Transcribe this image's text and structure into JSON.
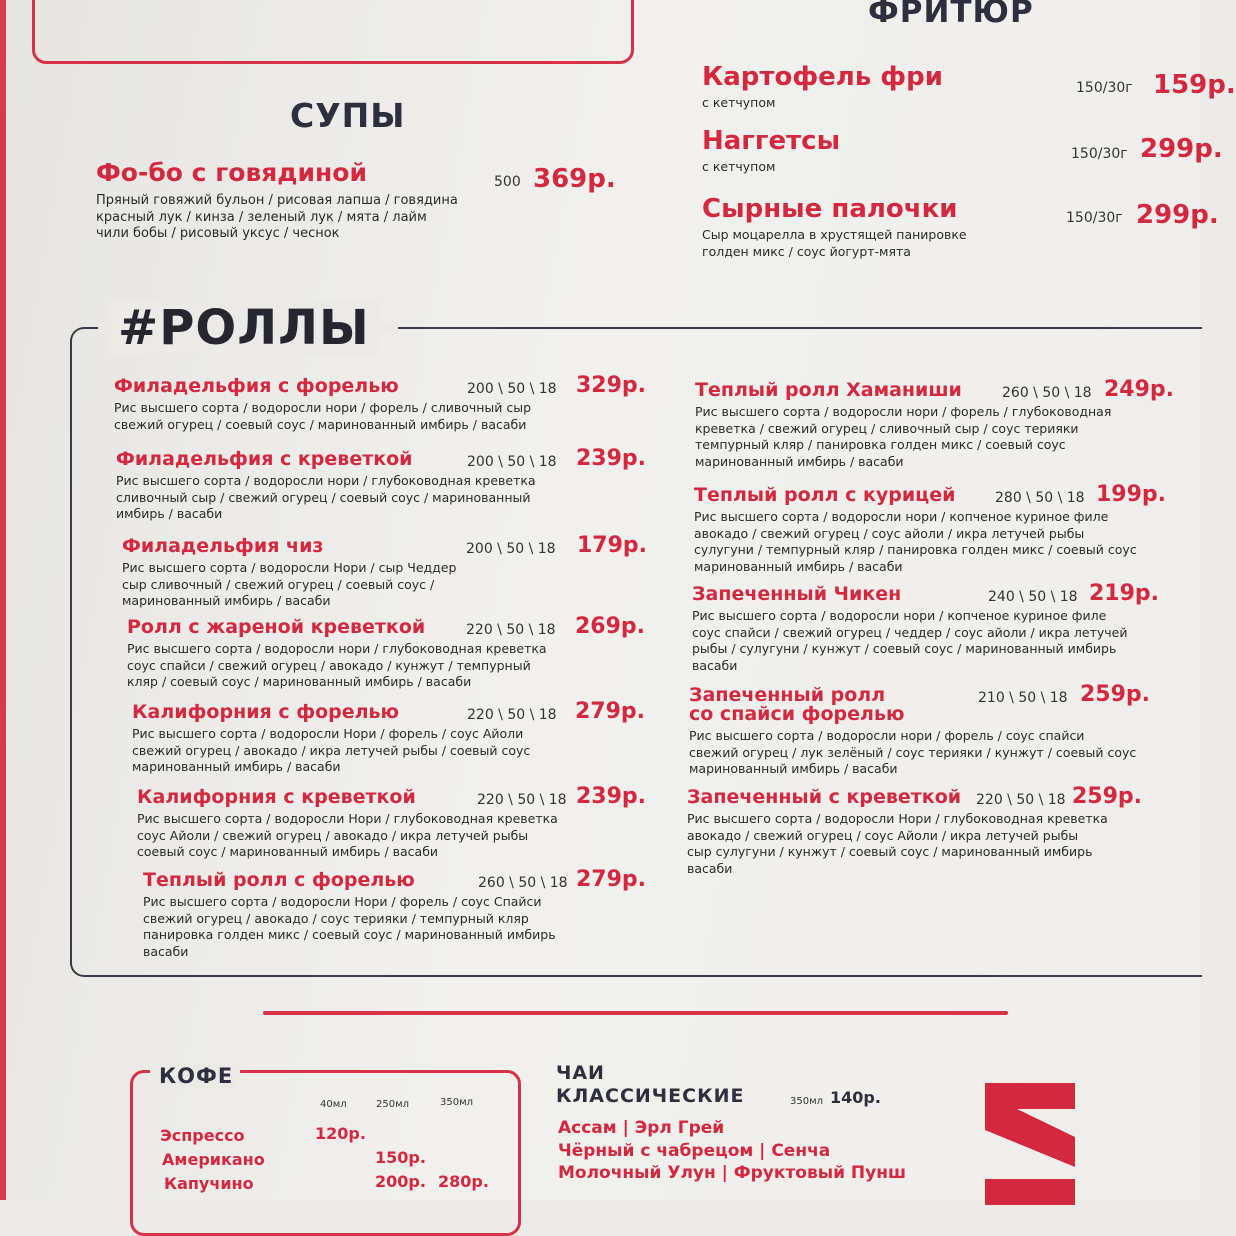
{
  "top_box_text": "",
  "fryer": {
    "title": "ФРИТЮР",
    "items": [
      {
        "name": "Картофель фри",
        "desc": [
          "с кетчупом"
        ],
        "portion": "150/30г",
        "price": "159р."
      },
      {
        "name": "Наггетсы",
        "desc": [
          "с кетчупом"
        ],
        "portion": "150/30г",
        "price": "299р."
      },
      {
        "name": "Сырные палочки",
        "desc": [
          "Сыр моцарелла в хрустящей панировке",
          "голден микс / соус йогурт-мята"
        ],
        "portion": "150/30г",
        "price": "299р."
      }
    ]
  },
  "soups": {
    "title": "СУПЫ",
    "items": [
      {
        "name": "Фо-бо с говядиной",
        "desc": [
          "Пряный говяжий бульон / рисовая лапша / говядина",
          "красный лук / кинза / зеленый лук / мята / лайм",
          "чили бобы / рисовый уксус / чеснок"
        ],
        "portion": "500",
        "price": "369р."
      }
    ]
  },
  "rolls": {
    "title": "#РОЛЛЫ",
    "left": [
      {
        "name": "Филадельфия с форелью",
        "portion": "200 \\ 50 \\ 18",
        "price": "329р.",
        "desc": [
          "Рис высшего сорта / водоросли нори / форель / сливочный сыр",
          "свежий огурец / соевый соус / маринованный имбирь / васаби"
        ]
      },
      {
        "name": "Филадельфия с креветкой",
        "portion": "200 \\ 50 \\ 18",
        "price": "239р.",
        "desc": [
          "Рис высшего сорта / водоросли нори / глубоководная креветка",
          "сливочный сыр / свежий огурец / соевый соус / маринованный",
          "имбирь / васаби"
        ]
      },
      {
        "name": "Филадельфия чиз",
        "portion": "200 \\ 50 \\ 18",
        "price": "179р.",
        "desc": [
          "Рис высшего сорта / водоросли Нори / сыр Чеддер",
          "сыр сливочный / свежий огурец / соевый соус /",
          "маринованный имбирь / васаби"
        ]
      },
      {
        "name": "Ролл с жареной креветкой",
        "portion": "220 \\ 50 \\ 18",
        "price": "269р.",
        "desc": [
          "Рис высшего сорта / водоросли нори / глубоководная креветка",
          "соус спайси / свежий огурец / авокадо / кунжут / темпурный",
          "кляр / соевый соус / маринованный имбирь / васаби"
        ]
      },
      {
        "name": "Калифорния с форелью",
        "portion": "220 \\ 50 \\ 18",
        "price": "279р.",
        "desc": [
          "Рис высшего сорта / водоросли Нори / форель / соус Айоли",
          "свежий огурец / авокадо / икра летучей рыбы / соевый соус",
          "маринованный имбирь / васаби"
        ]
      },
      {
        "name": "Калифорния с креветкой",
        "portion": "220 \\ 50 \\ 18",
        "price": "239р.",
        "desc": [
          "Рис высшего сорта / водоросли Нори / глубоководная креветка",
          "соус Айоли / свежий огурец / авокадо / икра летучей рыбы",
          "соевый соус / маринованный имбирь / васаби"
        ]
      },
      {
        "name": "Теплый ролл с форелью",
        "portion": "260 \\ 50 \\ 18",
        "price": "279р.",
        "desc": [
          "Рис высшего сорта / водоросли Нори / форель / соус Спайси",
          "свежий огурец / авокадо / соус терияки / темпурный кляр",
          "панировка голден микс / соевый соус / маринованный имбирь",
          "васаби"
        ]
      }
    ],
    "right": [
      {
        "name": "Теплый ролл Хаманиши",
        "portion": "260 \\ 50 \\ 18",
        "price": "249р.",
        "desc": [
          "Рис высшего сорта / водоросли нори / форель / глубоководная",
          "креветка / свежий огурец / сливочный сыр / соус терияки",
          "темпурный кляр / панировка голден микс / соевый соус",
          "маринованный имбирь / васаби"
        ]
      },
      {
        "name": "Теплый ролл с курицей",
        "portion": "280 \\ 50 \\ 18",
        "price": "199р.",
        "desc": [
          "Рис высшего сорта / водоросли нори / копченое куриное филе",
          "авокадо / свежий огурец / соус айоли / икра летучей рыбы",
          "сулугуни / темпурный кляр / панировка голден микс / соевый соус",
          "маринованный имбирь / васаби"
        ]
      },
      {
        "name": "Запеченный Чикен",
        "portion": "240 \\ 50 \\ 18",
        "price": "219р.",
        "desc": [
          "Рис высшего сорта / водоросли нори / копченое куриное филе",
          "соус спайси / свежий огурец  / чеддер / соус айоли / икра летучей",
          "рыбы / сулугуни / кунжут / соевый соус / маринованный имбирь",
          "васаби"
        ]
      },
      {
        "name": "Запеченный ролл\nсо спайси форелью",
        "portion": "210 \\ 50 \\ 18",
        "price": "259р.",
        "desc": [
          "Рис высшего сорта / водоросли нори / форель / соус спайси",
          "свежий огурец / лук зелёный / соус терияки / кунжут / соевый соус",
          "маринованный имбирь / васаби"
        ]
      },
      {
        "name": "Запеченный с креветкой",
        "portion": "220 \\ 50 \\ 18",
        "price": "259р.",
        "desc": [
          "Рис высшего сорта / водоросли Нори / глубоководная креветка",
          "авокадо / свежий огурец / соус Айоли / икра летучей рыбы",
          "сыр сулугуни / кунжут / соевый соус / маринованный имбирь",
          "васаби"
        ]
      }
    ]
  },
  "coffee": {
    "title": "КОФЕ",
    "sizes": [
      "40мл",
      "250мл",
      "350мл"
    ],
    "rows": [
      {
        "name": "Эспрессо",
        "prices": [
          "120р.",
          "",
          ""
        ]
      },
      {
        "name": "Американо",
        "prices": [
          "",
          "150р.",
          ""
        ]
      },
      {
        "name": "Капучино",
        "prices": [
          "",
          "200р.",
          "280р."
        ]
      }
    ]
  },
  "tea": {
    "title_line1": "ЧАИ",
    "title_line2": "КЛАССИЧЕСКИЕ",
    "size": "350мл",
    "price": "140р.",
    "lines": [
      "Ассам | Эрл Грей",
      "Чёрный с чабрецом  |  Сенча",
      "Молочный Улун | Фруктовый Пунш"
    ]
  },
  "colors": {
    "accent": "#d3283d",
    "dark": "#2e2f3e"
  }
}
